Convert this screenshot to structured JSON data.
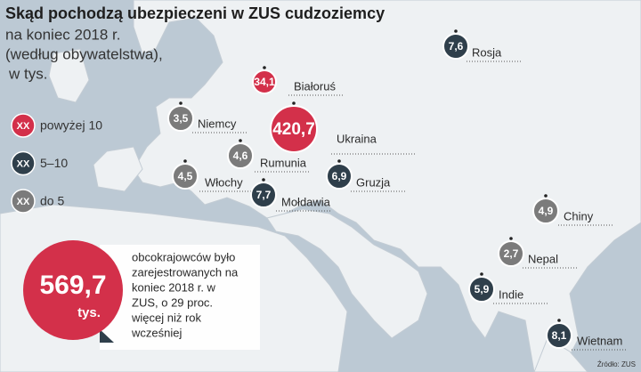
{
  "title": "Skąd pochodzą ubezpieczeni w ZUS cudzoziemcy",
  "subtitle": [
    "na koniec 2018 r.",
    "(według obywatelstwa),",
    "w tys."
  ],
  "legend": [
    {
      "marker": "XX",
      "label": "powyżej 10",
      "color": "#d3304a"
    },
    {
      "marker": "XX",
      "label": "5–10",
      "color": "#2f3f4b"
    },
    {
      "marker": "XX",
      "label": "do 5",
      "color": "#7b7b7b"
    }
  ],
  "markers": [
    {
      "value": "7,6",
      "country": "Rosja",
      "color": "#2f3f4b"
    },
    {
      "value": "34,1",
      "country": "Białoruś",
      "color": "#d3304a"
    },
    {
      "value": "420,7",
      "country": "Ukraina",
      "color": "#d3304a"
    },
    {
      "value": "3,5",
      "country": "Niemcy",
      "color": "#7b7b7b"
    },
    {
      "value": "4,6",
      "country": "Rumunia",
      "color": "#7b7b7b"
    },
    {
      "value": "4,5",
      "country": "Włochy",
      "color": "#7b7b7b"
    },
    {
      "value": "6,9",
      "country": "Gruzja",
      "color": "#2f3f4b"
    },
    {
      "value": "7,7",
      "country": "Mołdawia",
      "color": "#2f3f4b"
    },
    {
      "value": "4,9",
      "country": "Chiny",
      "color": "#7b7b7b"
    },
    {
      "value": "2,7",
      "country": "Nepal",
      "color": "#7b7b7b"
    },
    {
      "value": "5,9",
      "country": "Indie",
      "color": "#2f3f4b"
    },
    {
      "value": "8,1",
      "country": "Wietnam",
      "color": "#2f3f4b"
    }
  ],
  "summary": {
    "value": "569,7",
    "unit": "tys.",
    "text": [
      "obcokrajowców było",
      "zarejestrowanych na",
      "koniec 2018 r. w",
      "ZUS, o 29 proc.",
      "więcej niż rok",
      "wcześniej"
    ]
  },
  "source": "Źródło: ZUS"
}
